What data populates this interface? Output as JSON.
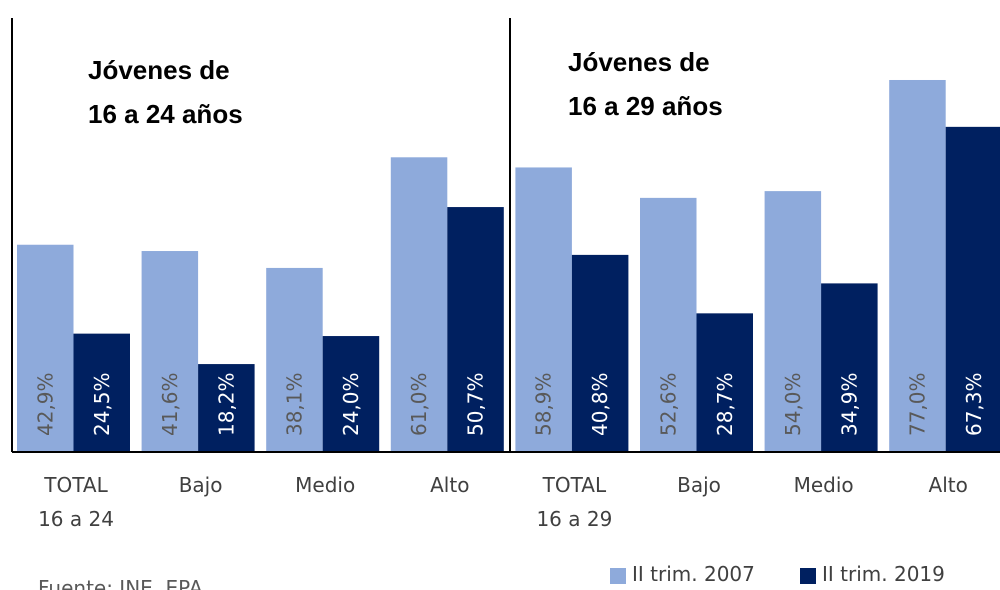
{
  "chart_data": {
    "type": "bar",
    "annotations": [
      "Jóvenes de\n16 a 24 años",
      "Jóvenes de\n16 a 29 años"
    ],
    "categories": [
      "TOTAL\n16 a 24",
      "Bajo",
      "Medio",
      "Alto",
      "TOTAL\n16 a 29",
      "Bajo",
      "Medio",
      "Alto"
    ],
    "series": [
      {
        "name": "II trim. 2007",
        "color": "#8eaadb",
        "values": [
          42.9,
          41.6,
          38.1,
          61.0,
          58.9,
          52.6,
          54.0,
          77.0
        ],
        "value_labels": [
          "42,9%",
          "41,6%",
          "38,1%",
          "61,0%",
          "58,9%",
          "52,6%",
          "54,0%",
          "77,0%"
        ]
      },
      {
        "name": "II trim. 2019",
        "color": "#002060",
        "values": [
          24.5,
          18.2,
          24.0,
          50.7,
          40.8,
          28.7,
          34.9,
          67.3
        ],
        "value_labels": [
          "24,5%",
          "18,2%",
          "24,0%",
          "50,7%",
          "40,8%",
          "28,7%",
          "34,9%",
          "67,3%"
        ]
      }
    ],
    "ylim": [
      0,
      80
    ],
    "source": "Fuente: INE, EPA"
  }
}
